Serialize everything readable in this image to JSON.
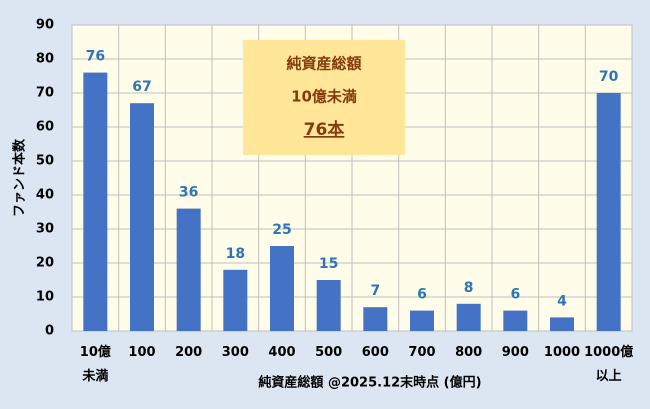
{
  "chart_data": {
    "type": "bar",
    "categories": [
      "10億\n未満",
      "100",
      "200",
      "300",
      "400",
      "500",
      "600",
      "700",
      "800",
      "900",
      "1000",
      "1000億\n以上"
    ],
    "values": [
      76,
      67,
      36,
      18,
      25,
      15,
      7,
      6,
      8,
      6,
      4,
      70
    ],
    "color": "#4472c4",
    "label_color": "#2e75b6",
    "ylim": [
      0,
      90
    ],
    "yticks": [
      0,
      10,
      20,
      30,
      40,
      50,
      60,
      70,
      80,
      90
    ],
    "grid": true,
    "xlabel": "純資産総額 @2025.12末時点 (億円)",
    "ylabel": "ファンド本数",
    "annotation": {
      "lines": [
        "純資産総額",
        "10億未満",
        "76本"
      ]
    }
  }
}
